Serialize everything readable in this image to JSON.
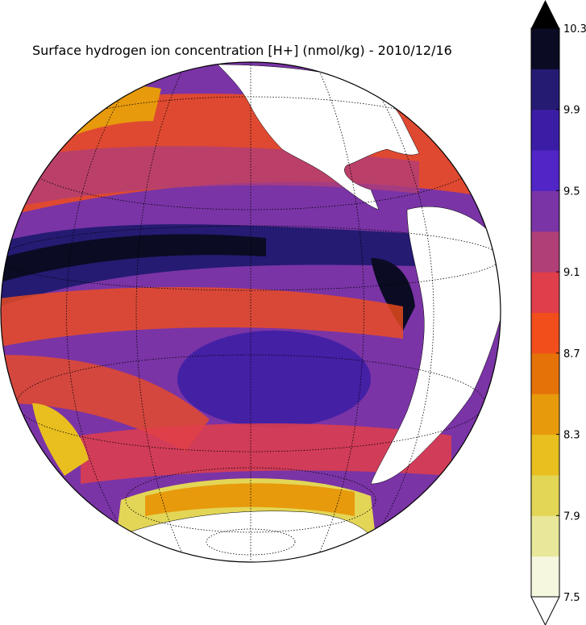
{
  "title": "Surface hydrogen ion concentration [H+] (nmol/kg) - 2010/12/16",
  "colorbar": {
    "ticks": [
      "10.3",
      "9.9",
      "9.5",
      "9.1",
      "8.7",
      "8.3",
      "7.9",
      "7.5"
    ],
    "colors": [
      "#f6f7df",
      "#e8e79a",
      "#e3d656",
      "#e8bf1e",
      "#e79a0c",
      "#e47208",
      "#f14e1c",
      "#e03e4a",
      "#b03f78",
      "#7a34a6",
      "#5125c6",
      "#3b1da5",
      "#251b72",
      "#0b0b24"
    ],
    "extend_high_color": "#000000",
    "extend_low_color": "#ffffff"
  },
  "map_colors": {
    "ocean_base": "#7a34a6",
    "land": "#ffffff",
    "very_high": "#0b0b24",
    "high": "#251b72",
    "mid_high": "#3b1da5",
    "mid": "#b03f78",
    "low_mid": "#f14e1c",
    "low": "#e79a0c",
    "very_low": "#e3d656"
  }
}
